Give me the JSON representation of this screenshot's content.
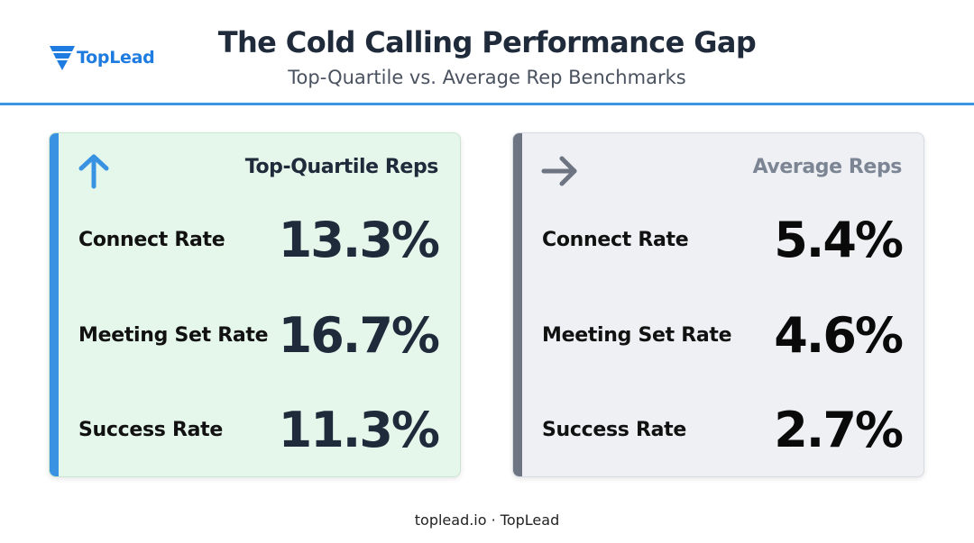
{
  "header": {
    "logo_text": "TopLead",
    "logo_icon": "toplead-chevron-logo",
    "title": "The Cold Calling Performance Gap",
    "subtitle": "Top-Quartile vs. Average Rep Benchmarks",
    "accent_color": "#3d94e0"
  },
  "cards": [
    {
      "heading": "Top-Quartile Reps",
      "icon": "arrow-up-icon",
      "accent_color": "#3a93e2",
      "background_color": "#e4f7ea",
      "metrics": [
        {
          "label": "Connect Rate",
          "value": "13.3%"
        },
        {
          "label": "Meeting Set Rate",
          "value": "16.7%"
        },
        {
          "label": "Success Rate",
          "value": "11.3%"
        }
      ]
    },
    {
      "heading": "Average Reps",
      "icon": "arrow-right-icon",
      "accent_color": "#6d7582",
      "background_color": "#eff0f4",
      "metrics": [
        {
          "label": "Connect Rate",
          "value": "5.4%"
        },
        {
          "label": "Meeting Set Rate",
          "value": "4.6%"
        },
        {
          "label": "Success Rate",
          "value": "2.7%"
        }
      ]
    }
  ],
  "footer": {
    "text": "toplead.io · TopLead"
  }
}
